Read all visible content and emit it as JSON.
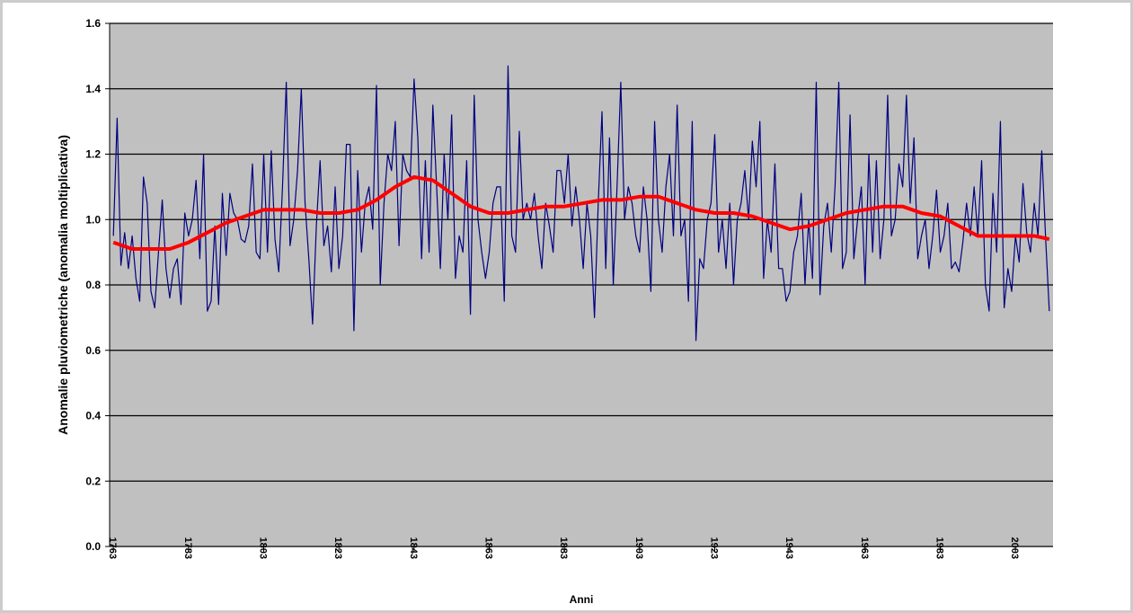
{
  "chart_data": {
    "type": "line",
    "y_label": "Anomalie pluviometriche (anomalia moltiplicativa)",
    "x_label": "Anni",
    "xlim": [
      1762,
      2013
    ],
    "xticks": [
      1763,
      1783,
      1803,
      1823,
      1843,
      1863,
      1883,
      1903,
      1923,
      1943,
      1963,
      1983,
      2003
    ],
    "ylim": [
      0,
      1.6
    ],
    "yticks": [
      {
        "value": 0,
        "label": "0.0"
      },
      0.2,
      0.4,
      0.6,
      0.8,
      {
        "value": 1,
        "label": "1.0"
      },
      1.2,
      1.4,
      1.6
    ],
    "grid": true,
    "background": "#c0c0c0",
    "x": [
      1763,
      1764,
      1765,
      1766,
      1767,
      1768,
      1769,
      1770,
      1771,
      1772,
      1773,
      1774,
      1775,
      1776,
      1777,
      1778,
      1779,
      1780,
      1781,
      1782,
      1783,
      1784,
      1785,
      1786,
      1787,
      1788,
      1789,
      1790,
      1791,
      1792,
      1793,
      1794,
      1795,
      1796,
      1797,
      1798,
      1799,
      1800,
      1801,
      1802,
      1803,
      1804,
      1805,
      1806,
      1807,
      1808,
      1809,
      1810,
      1811,
      1812,
      1813,
      1814,
      1815,
      1816,
      1817,
      1818,
      1819,
      1820,
      1821,
      1822,
      1823,
      1824,
      1825,
      1826,
      1827,
      1828,
      1829,
      1830,
      1831,
      1832,
      1833,
      1834,
      1835,
      1836,
      1837,
      1838,
      1839,
      1840,
      1841,
      1842,
      1843,
      1844,
      1845,
      1846,
      1847,
      1848,
      1849,
      1850,
      1851,
      1852,
      1853,
      1854,
      1855,
      1856,
      1857,
      1858,
      1859,
      1860,
      1861,
      1862,
      1863,
      1864,
      1865,
      1866,
      1867,
      1868,
      1869,
      1870,
      1871,
      1872,
      1873,
      1874,
      1875,
      1876,
      1877,
      1878,
      1879,
      1880,
      1881,
      1882,
      1883,
      1884,
      1885,
      1886,
      1887,
      1888,
      1889,
      1890,
      1891,
      1892,
      1893,
      1894,
      1895,
      1896,
      1897,
      1898,
      1899,
      1900,
      1901,
      1902,
      1903,
      1904,
      1905,
      1906,
      1907,
      1908,
      1909,
      1910,
      1911,
      1912,
      1913,
      1914,
      1915,
      1916,
      1917,
      1918,
      1919,
      1920,
      1921,
      1922,
      1923,
      1924,
      1925,
      1926,
      1927,
      1928,
      1929,
      1930,
      1931,
      1932,
      1933,
      1934,
      1935,
      1936,
      1937,
      1938,
      1939,
      1940,
      1941,
      1942,
      1943,
      1944,
      1945,
      1946,
      1947,
      1948,
      1949,
      1950,
      1951,
      1952,
      1953,
      1954,
      1955,
      1956,
      1957,
      1958,
      1959,
      1960,
      1961,
      1962,
      1963,
      1964,
      1965,
      1966,
      1967,
      1968,
      1969,
      1970,
      1971,
      1972,
      1973,
      1974,
      1975,
      1976,
      1977,
      1978,
      1979,
      1980,
      1981,
      1982,
      1983,
      1984,
      1985,
      1986,
      1987,
      1988,
      1989,
      1990,
      1991,
      1992,
      1993,
      1994,
      1995,
      1996,
      1997,
      1998,
      1999,
      2000,
      2001,
      2002,
      2003,
      2004,
      2005,
      2006,
      2007,
      2008,
      2009,
      2010,
      2011,
      2012
    ],
    "series": [
      {
        "color": "#000080",
        "width": 1.2,
        "values": [
          0.95,
          1.31,
          0.86,
          0.96,
          0.85,
          0.95,
          0.82,
          0.75,
          1.13,
          1.05,
          0.78,
          0.73,
          0.9,
          1.06,
          0.85,
          0.76,
          0.85,
          0.88,
          0.74,
          1.02,
          0.95,
          1.0,
          1.12,
          0.88,
          1.2,
          0.72,
          0.75,
          0.98,
          0.74,
          1.08,
          0.89,
          1.08,
          1.02,
          1.0,
          0.94,
          0.93,
          0.98,
          1.17,
          0.9,
          0.88,
          1.2,
          0.9,
          1.21,
          0.94,
          0.84,
          1.1,
          1.42,
          0.92,
          1.0,
          1.15,
          1.4,
          1.05,
          0.88,
          0.68,
          0.98,
          1.18,
          0.92,
          0.98,
          0.84,
          1.1,
          0.85,
          0.95,
          1.23,
          1.23,
          0.66,
          1.15,
          0.9,
          1.05,
          1.1,
          0.97,
          1.41,
          0.8,
          1.05,
          1.2,
          1.15,
          1.3,
          0.92,
          1.2,
          1.15,
          1.13,
          1.43,
          1.25,
          0.88,
          1.18,
          0.9,
          1.35,
          1.1,
          0.85,
          1.2,
          1.0,
          1.32,
          0.82,
          0.95,
          0.9,
          1.18,
          0.71,
          1.38,
          1.0,
          0.9,
          0.82,
          0.9,
          1.05,
          1.1,
          1.1,
          0.75,
          1.47,
          0.95,
          0.9,
          1.27,
          1.0,
          1.05,
          1.0,
          1.08,
          0.95,
          0.85,
          1.05,
          0.98,
          0.9,
          1.15,
          1.15,
          1.05,
          1.2,
          0.98,
          1.1,
          1.0,
          0.85,
          1.05,
          0.95,
          0.7,
          1.05,
          1.33,
          0.85,
          1.25,
          0.8,
          1.1,
          1.42,
          1.0,
          1.1,
          1.05,
          0.95,
          0.9,
          1.1,
          1.0,
          0.78,
          1.3,
          1.0,
          0.9,
          1.1,
          1.2,
          0.95,
          1.35,
          0.95,
          1.0,
          0.75,
          1.3,
          0.63,
          0.88,
          0.85,
          1.0,
          1.05,
          1.26,
          0.9,
          1.0,
          0.85,
          1.05,
          0.8,
          1.0,
          1.05,
          1.15,
          1.0,
          1.24,
          1.1,
          1.3,
          0.82,
          1.0,
          0.9,
          1.17,
          0.85,
          0.85,
          0.75,
          0.78,
          0.9,
          0.95,
          1.08,
          0.8,
          1.0,
          0.82,
          1.42,
          0.77,
          0.98,
          1.05,
          0.9,
          1.1,
          1.42,
          0.85,
          0.9,
          1.32,
          0.88,
          1.0,
          1.1,
          0.8,
          1.2,
          0.9,
          1.18,
          0.88,
          1.0,
          1.38,
          0.95,
          1.0,
          1.17,
          1.1,
          1.38,
          1.05,
          1.25,
          0.88,
          0.95,
          1.0,
          0.85,
          0.95,
          1.09,
          0.9,
          0.95,
          1.05,
          0.85,
          0.87,
          0.84,
          0.93,
          1.05,
          0.95,
          1.1,
          0.95,
          1.18,
          0.8,
          0.72,
          1.08,
          0.9,
          1.3,
          0.73,
          0.85,
          0.78,
          0.95,
          0.87,
          1.11,
          0.96,
          0.9,
          1.05,
          0.95,
          1.21,
          0.95,
          0.72
        ]
      },
      {
        "color": "#ff0000",
        "width": 4,
        "x": [
          1763,
          1768,
          1773,
          1778,
          1783,
          1788,
          1793,
          1798,
          1803,
          1808,
          1813,
          1818,
          1823,
          1828,
          1833,
          1838,
          1843,
          1848,
          1853,
          1858,
          1863,
          1868,
          1873,
          1878,
          1883,
          1888,
          1893,
          1898,
          1903,
          1908,
          1913,
          1918,
          1923,
          1928,
          1933,
          1938,
          1943,
          1948,
          1953,
          1958,
          1963,
          1968,
          1973,
          1978,
          1983,
          1988,
          1993,
          1998,
          2003,
          2008,
          2012
        ],
        "values": [
          0.93,
          0.91,
          0.91,
          0.91,
          0.93,
          0.96,
          0.99,
          1.01,
          1.03,
          1.03,
          1.03,
          1.02,
          1.02,
          1.03,
          1.06,
          1.1,
          1.13,
          1.12,
          1.08,
          1.04,
          1.02,
          1.02,
          1.03,
          1.04,
          1.04,
          1.05,
          1.06,
          1.06,
          1.07,
          1.07,
          1.05,
          1.03,
          1.02,
          1.02,
          1.01,
          0.99,
          0.97,
          0.98,
          1.0,
          1.02,
          1.03,
          1.04,
          1.04,
          1.02,
          1.01,
          0.98,
          0.95,
          0.95,
          0.95,
          0.95,
          0.94
        ]
      }
    ]
  }
}
